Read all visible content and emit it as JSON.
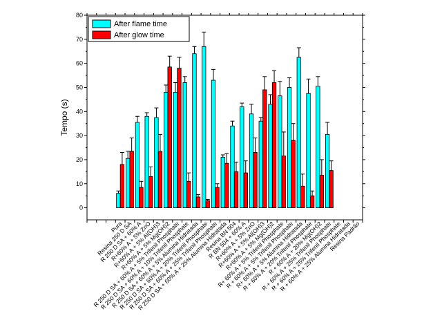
{
  "chart_data": {
    "type": "bar",
    "title": "",
    "xlabel": "",
    "ylabel": "Tempo (s)",
    "ylim": [
      -5,
      80
    ],
    "yticks": [
      0,
      10,
      20,
      30,
      40,
      50,
      60,
      70,
      80
    ],
    "grid": false,
    "legend_position": "top-left",
    "categories": [
      "Pura",
      "Resina 250 D SA",
      "R 250 D SA + 60% A",
      "R+60% A + 5% ZnO",
      "R+60% A + 5% Al(OH)3",
      "R+60% A + 5% Mg(OH)2",
      "R 250 D SA + 60% A + 5% Trifenil Phosphate",
      "R 250 D SA + 60% A + 10% Trifenil Phosphate",
      "R 250 D SA + 60% A + 5% Alumina Hidratada",
      "R 250 D SA + 60% A + 20% Trifenil Phosphate",
      "R 250 D SA + 60% A + 25% Trifenil Phosphate",
      "R 250 D SA + 60% A + 25% Alumina Hidratada",
      "Resina BN 504",
      "R BN 504 + 60% A",
      "R+60% A + 5% ZnO",
      "R+60% A + 5% Al(OH)3",
      "R+60% A + 5% Mg(OH)2",
      "R+ 60% A + 5% Trifenil Phosphate",
      "R + 60% A + 5% Trifenil Phosphate",
      "R+ 60% A + 5% Alumina Hidratada",
      "R + 60% A + 20% Trifenil Phosphate",
      "R + 60% A + 20% Mg(OH)2",
      "R + 60% A + 25% Trifenil Phosphate",
      "R + 60% A + 25% Trifenil Phosphate",
      "R + 60% A + 25% Alumina Hidratada",
      "Resina Padrão"
    ],
    "series": [
      {
        "name": "After flame time",
        "color": "#00FFFF",
        "values": [
          6,
          20.5,
          35.5,
          38,
          37.5,
          48,
          48,
          52,
          64,
          67,
          53,
          21,
          34,
          42,
          39,
          36,
          43,
          46.5,
          50,
          62.5,
          47.5,
          50.5,
          30.5,
          null,
          null,
          null
        ],
        "errors": [
          1,
          3,
          2.5,
          1.5,
          4,
          3,
          4,
          2.5,
          3,
          6,
          4.5,
          1,
          2,
          1.5,
          4,
          1.5,
          4,
          6,
          4,
          4,
          6,
          4,
          5,
          null,
          null,
          null
        ]
      },
      {
        "name": "After glow time",
        "color": "#FF0000",
        "values": [
          18,
          23.5,
          8.5,
          13,
          23.5,
          58.5,
          58,
          11,
          4.5,
          3,
          8.5,
          18.5,
          15,
          14.5,
          23,
          49,
          52,
          21.5,
          28,
          9,
          5,
          13.5,
          15.5,
          null,
          null,
          null
        ],
        "errors": [
          5,
          5.5,
          2.5,
          4,
          7,
          4.5,
          4.5,
          3.5,
          1,
          0.5,
          1.5,
          4,
          4,
          5,
          6,
          5.5,
          5,
          10,
          7,
          5,
          2,
          6.5,
          4,
          null,
          null,
          null
        ]
      }
    ],
    "legend": [
      "After flame time",
      "After glow time"
    ]
  },
  "page_labels": {
    "legend_flame": "After flame time",
    "legend_glow": "After glow time",
    "ylabel": "Tempo (s)"
  }
}
